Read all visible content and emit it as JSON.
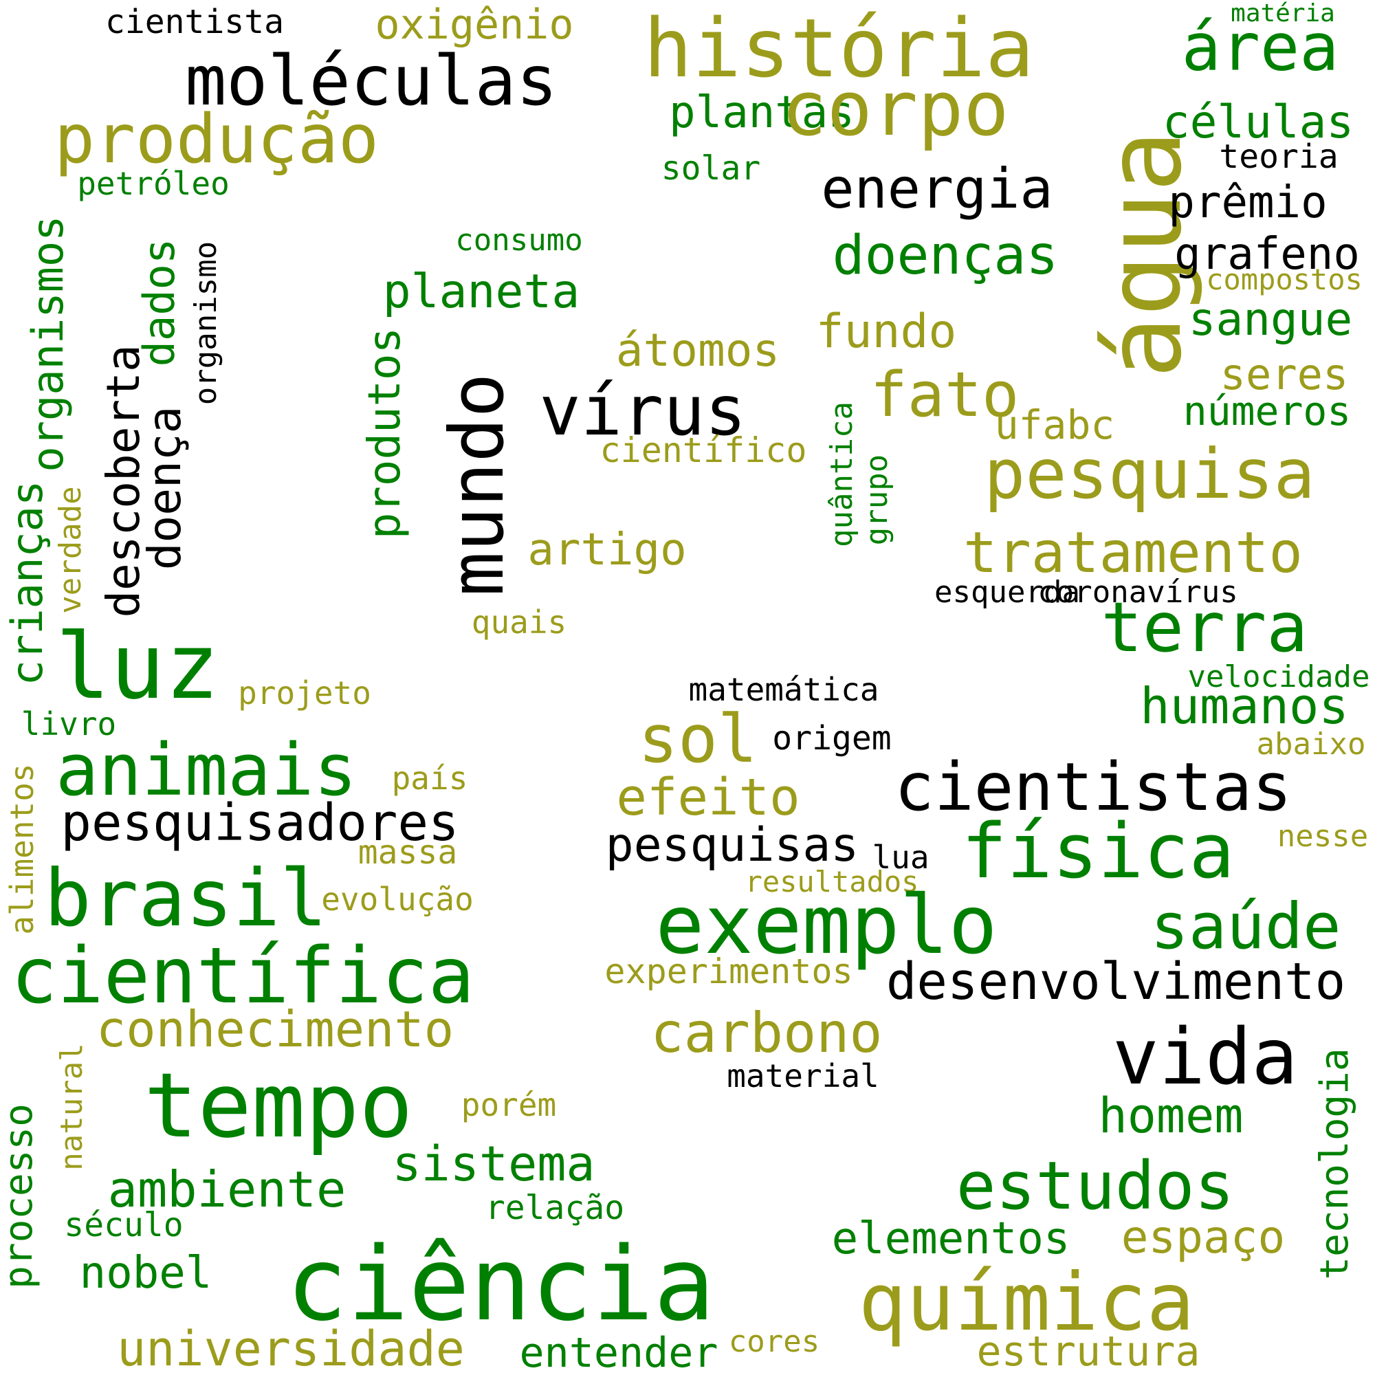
{
  "palette": {
    "green": "#008000",
    "olive": "#9c9c1c",
    "black": "#000000"
  },
  "words": [
    {
      "t": "cientista",
      "c": "black"
    },
    {
      "t": "oxigênio",
      "c": "olive"
    },
    {
      "t": "história",
      "c": "olive"
    },
    {
      "t": "área",
      "c": "green"
    },
    {
      "t": "matéria",
      "c": "green"
    },
    {
      "t": "moléculas",
      "c": "black"
    },
    {
      "t": "produção",
      "c": "olive"
    },
    {
      "t": "plantas",
      "c": "green"
    },
    {
      "t": "corpo",
      "c": "olive"
    },
    {
      "t": "água",
      "c": "olive"
    },
    {
      "t": "células",
      "c": "green"
    },
    {
      "t": "teoria",
      "c": "black"
    },
    {
      "t": "petróleo",
      "c": "green"
    },
    {
      "t": "solar",
      "c": "green"
    },
    {
      "t": "energia",
      "c": "black"
    },
    {
      "t": "prêmio",
      "c": "black"
    },
    {
      "t": "consumo",
      "c": "green"
    },
    {
      "t": "doenças",
      "c": "green"
    },
    {
      "t": "grafeno",
      "c": "black"
    },
    {
      "t": "compostos",
      "c": "olive"
    },
    {
      "t": "planeta",
      "c": "green"
    },
    {
      "t": "sangue",
      "c": "green"
    },
    {
      "t": "fundo",
      "c": "olive"
    },
    {
      "t": "átomos",
      "c": "olive"
    },
    {
      "t": "seres",
      "c": "olive"
    },
    {
      "t": "fato",
      "c": "olive"
    },
    {
      "t": "números",
      "c": "green"
    },
    {
      "t": "vírus",
      "c": "black"
    },
    {
      "t": "ufabc",
      "c": "olive"
    },
    {
      "t": "científico",
      "c": "olive"
    },
    {
      "t": "pesquisa",
      "c": "olive"
    },
    {
      "t": "organismos",
      "c": "green"
    },
    {
      "t": "dados",
      "c": "green"
    },
    {
      "t": "organismo",
      "c": "black"
    },
    {
      "t": "descoberta",
      "c": "black"
    },
    {
      "t": "doença",
      "c": "black"
    },
    {
      "t": "produtos",
      "c": "green"
    },
    {
      "t": "mundo",
      "c": "black"
    },
    {
      "t": "quântica",
      "c": "green"
    },
    {
      "t": "grupo",
      "c": "green"
    },
    {
      "t": "tratamento",
      "c": "olive"
    },
    {
      "t": "artigo",
      "c": "olive"
    },
    {
      "t": "crianças",
      "c": "green"
    },
    {
      "t": "verdade",
      "c": "olive"
    },
    {
      "t": "esquerda",
      "c": "black"
    },
    {
      "t": "coronavírus",
      "c": "black"
    },
    {
      "t": "quais",
      "c": "olive"
    },
    {
      "t": "terra",
      "c": "green"
    },
    {
      "t": "luz",
      "c": "green"
    },
    {
      "t": "velocidade",
      "c": "green"
    },
    {
      "t": "projeto",
      "c": "olive"
    },
    {
      "t": "matemática",
      "c": "black"
    },
    {
      "t": "humanos",
      "c": "green"
    },
    {
      "t": "livro",
      "c": "green"
    },
    {
      "t": "sol",
      "c": "olive"
    },
    {
      "t": "origem",
      "c": "black"
    },
    {
      "t": "abaixo",
      "c": "olive"
    },
    {
      "t": "animais",
      "c": "green"
    },
    {
      "t": "alimentos",
      "c": "olive"
    },
    {
      "t": "país",
      "c": "olive"
    },
    {
      "t": "cientistas",
      "c": "black"
    },
    {
      "t": "efeito",
      "c": "olive"
    },
    {
      "t": "pesquisadores",
      "c": "black"
    },
    {
      "t": "nesse",
      "c": "olive"
    },
    {
      "t": "massa",
      "c": "olive"
    },
    {
      "t": "pesquisas",
      "c": "black"
    },
    {
      "t": "lua",
      "c": "black"
    },
    {
      "t": "física",
      "c": "green"
    },
    {
      "t": "brasil",
      "c": "green"
    },
    {
      "t": "resultados",
      "c": "olive"
    },
    {
      "t": "evolução",
      "c": "olive"
    },
    {
      "t": "exemplo",
      "c": "green"
    },
    {
      "t": "saúde",
      "c": "green"
    },
    {
      "t": "científica",
      "c": "green"
    },
    {
      "t": "experimentos",
      "c": "olive"
    },
    {
      "t": "desenvolvimento",
      "c": "black"
    },
    {
      "t": "conhecimento",
      "c": "olive"
    },
    {
      "t": "carbono",
      "c": "olive"
    },
    {
      "t": "vida",
      "c": "black"
    },
    {
      "t": "natural",
      "c": "olive"
    },
    {
      "t": "material",
      "c": "black"
    },
    {
      "t": "tecnologia",
      "c": "green"
    },
    {
      "t": "tempo",
      "c": "green"
    },
    {
      "t": "porém",
      "c": "olive"
    },
    {
      "t": "homem",
      "c": "green"
    },
    {
      "t": "processo",
      "c": "green"
    },
    {
      "t": "sistema",
      "c": "green"
    },
    {
      "t": "ambiente",
      "c": "green"
    },
    {
      "t": "estudos",
      "c": "green"
    },
    {
      "t": "relação",
      "c": "green"
    },
    {
      "t": "século",
      "c": "green"
    },
    {
      "t": "espaço",
      "c": "olive"
    },
    {
      "t": "elementos",
      "c": "green"
    },
    {
      "t": "nobel",
      "c": "green"
    },
    {
      "t": "ciência",
      "c": "green"
    },
    {
      "t": "química",
      "c": "olive"
    },
    {
      "t": "universidade",
      "c": "olive"
    },
    {
      "t": "entender",
      "c": "green"
    },
    {
      "t": "cores",
      "c": "olive"
    },
    {
      "t": "estrutura",
      "c": "olive"
    }
  ]
}
